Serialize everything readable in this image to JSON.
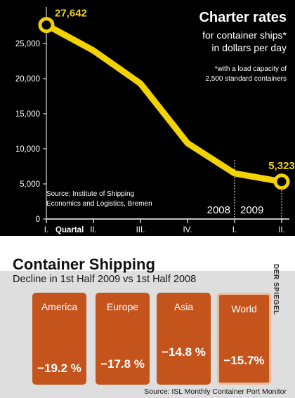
{
  "charts": {
    "main": {
      "title": "Charter rates",
      "subtitle": "for container ships*\nin dollars per day",
      "footnote": "*with a load capacity of\n2,500 standard containers",
      "source": "Source: Institute of Shipping\nEconomics and Logistics, Bremen",
      "year_labels": [
        "2008",
        "2009"
      ],
      "x_first_label_suffix": "Quartal"
    },
    "section": {
      "title": "Container Shipping",
      "subtitle": "Decline in 1st Half 2009 vs 1st Half 2008",
      "watermark": "DER SPIEGEL",
      "source": "Source: ISL Monthly Container Port Monitor",
      "cards": [
        {
          "region": "America",
          "value": "−19.2 %"
        },
        {
          "region": "Europe",
          "value": "−17.8 %"
        },
        {
          "region": "Asia",
          "value": "−14.8 %"
        },
        {
          "region": "World",
          "value": "−15.7%"
        }
      ]
    }
  },
  "chart_data": [
    {
      "type": "line",
      "title": "Charter rates",
      "subtitle": "for container ships* in dollars per day",
      "categories": [
        "I.",
        "II.",
        "III.",
        "IV.",
        "I.",
        "II."
      ],
      "series": [
        {
          "values": [
            27642,
            24000,
            19300,
            10800,
            6500,
            5323
          ]
        }
      ],
      "annotations": [
        "27,642",
        "5,323"
      ],
      "y_ticks": [
        "0",
        "5,000",
        "10,000",
        "15,000",
        "20,000",
        "25,000"
      ],
      "ylim": [
        0,
        30000
      ],
      "grid": false,
      "colors": {
        "line": "#f2d300",
        "background": "#000000"
      }
    },
    {
      "type": "bar",
      "title": "Container Shipping",
      "subtitle": "Decline in 1st Half 2009 vs 1st Half 2008",
      "categories": [
        "America",
        "Europe",
        "Asia",
        "World"
      ],
      "values": [
        -19.2,
        -17.8,
        -14.8,
        -15.7
      ],
      "colors": {
        "bar": "#c4531c",
        "highlight_border": "#f0b99a"
      }
    }
  ]
}
